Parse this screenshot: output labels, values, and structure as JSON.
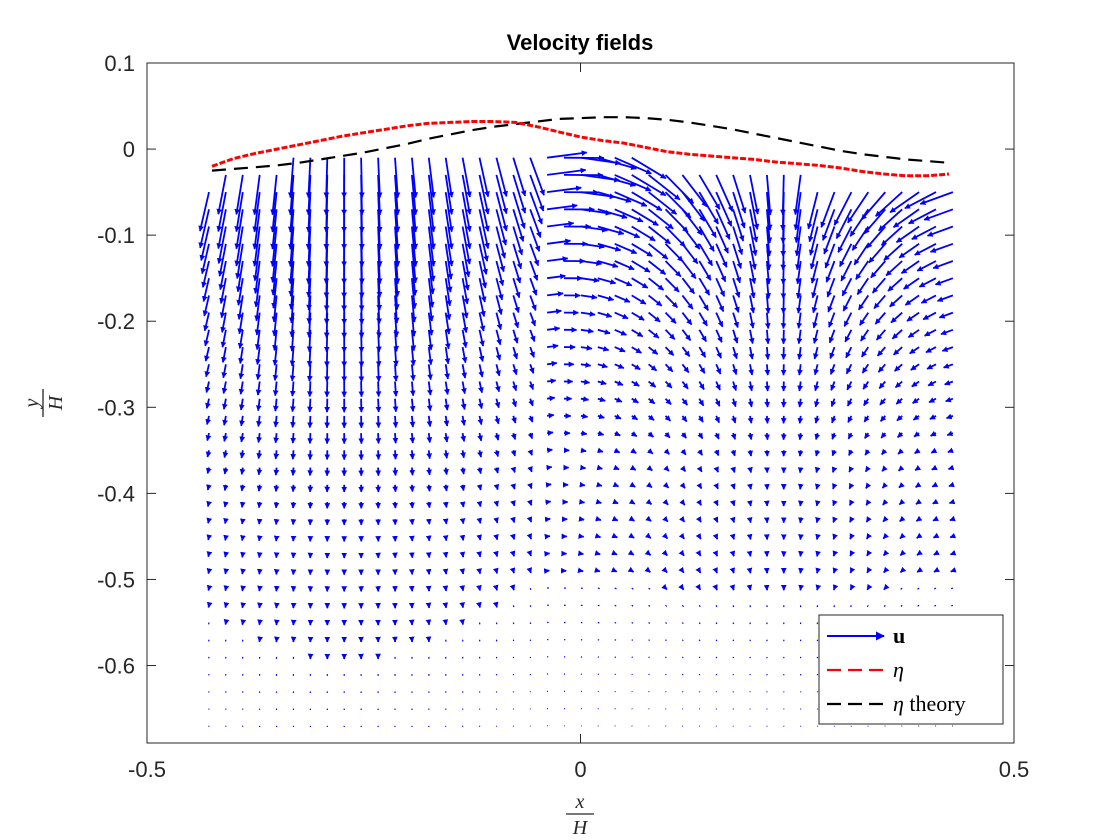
{
  "chart_data": {
    "type": "quiver",
    "title": "Velocity fields",
    "xlabel": {
      "numerator": "x",
      "denominator": "H"
    },
    "ylabel": {
      "numerator": "y",
      "denominator": "H"
    },
    "xlim": [
      -0.5,
      0.5
    ],
    "ylim": [
      -0.69,
      0.1
    ],
    "xticks": [
      -0.5,
      0,
      0.5
    ],
    "xtick_labels": [
      "-0.5",
      "0",
      "0.5"
    ],
    "yticks": [
      0.1,
      0,
      -0.1,
      -0.2,
      -0.3,
      -0.4,
      -0.5,
      -0.6
    ],
    "ytick_labels": [
      "0.1",
      "0",
      "-0.1",
      "-0.2",
      "-0.3",
      "-0.4",
      "-0.5",
      "-0.6"
    ],
    "grid": false,
    "legend": {
      "placement": "bottom-right",
      "entries": [
        {
          "symbol": "u",
          "style": "arrow",
          "color": "#0000ff"
        },
        {
          "symbol": "η",
          "suffix": "",
          "style": "dashed",
          "color": "#ff0000"
        },
        {
          "symbol": "η",
          "suffix": " theory",
          "style": "dashed",
          "color": "#000000"
        }
      ]
    },
    "colors": {
      "velocity": "#0000ff",
      "eta": "#ff0000",
      "eta_theory": "#000000"
    },
    "quiver_grid": {
      "x_start": -0.4285,
      "x_step": 0.0195,
      "nx": 45,
      "y_top": -0.01,
      "y_step": 0.02,
      "ny": 34
    },
    "series": [
      {
        "name": "η",
        "x": [
          -0.425,
          -0.4,
          -0.375,
          -0.35,
          -0.325,
          -0.3,
          -0.275,
          -0.25,
          -0.225,
          -0.2,
          -0.175,
          -0.15,
          -0.125,
          -0.1,
          -0.075,
          -0.05,
          -0.025,
          0.0,
          0.025,
          0.05,
          0.075,
          0.1,
          0.125,
          0.15,
          0.175,
          0.2,
          0.225,
          0.25,
          0.275,
          0.3,
          0.325,
          0.35,
          0.375,
          0.4,
          0.425
        ],
        "y": [
          -0.02,
          -0.011,
          -0.005,
          0.0,
          0.005,
          0.01,
          0.015,
          0.019,
          0.023,
          0.027,
          0.03,
          0.031,
          0.032,
          0.032,
          0.031,
          0.026,
          0.02,
          0.014,
          0.01,
          0.007,
          0.002,
          -0.003,
          -0.006,
          -0.008,
          -0.01,
          -0.012,
          -0.015,
          -0.017,
          -0.019,
          -0.022,
          -0.026,
          -0.029,
          -0.031,
          -0.031,
          -0.029
        ]
      },
      {
        "name": "η theory",
        "x": [
          -0.425,
          -0.4,
          -0.375,
          -0.35,
          -0.325,
          -0.3,
          -0.275,
          -0.25,
          -0.225,
          -0.2,
          -0.175,
          -0.15,
          -0.125,
          -0.1,
          -0.075,
          -0.05,
          -0.025,
          0.0,
          0.025,
          0.05,
          0.075,
          0.1,
          0.125,
          0.15,
          0.175,
          0.2,
          0.225,
          0.25,
          0.275,
          0.3,
          0.325,
          0.35,
          0.375,
          0.4,
          0.425
        ],
        "y": [
          -0.025,
          -0.023,
          -0.021,
          -0.019,
          -0.016,
          -0.012,
          -0.008,
          -0.004,
          0.001,
          0.006,
          0.012,
          0.017,
          0.022,
          0.026,
          0.029,
          0.032,
          0.035,
          0.036,
          0.037,
          0.037,
          0.036,
          0.034,
          0.031,
          0.027,
          0.023,
          0.018,
          0.013,
          0.008,
          0.003,
          -0.002,
          -0.006,
          -0.009,
          -0.012,
          -0.014,
          -0.016
        ]
      }
    ]
  }
}
